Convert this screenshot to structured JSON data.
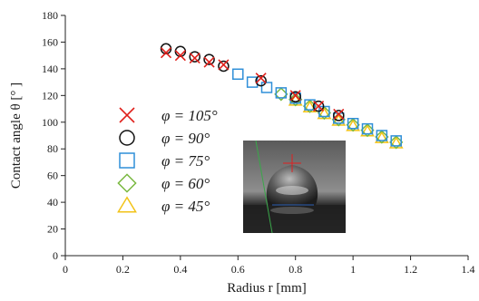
{
  "chart_data": {
    "type": "scatter",
    "xlabel": "Radius r [mm]",
    "ylabel": "Contact angle θ [° ]",
    "xlim": [
      0,
      1.4
    ],
    "ylim": [
      0,
      180
    ],
    "x_ticks": [
      0,
      0.2,
      0.4,
      0.6,
      0.8,
      1,
      1.2,
      1.4
    ],
    "y_ticks": [
      0,
      20,
      40,
      60,
      80,
      100,
      120,
      140,
      160,
      180
    ],
    "x_tick_labels": [
      "0",
      "0.2",
      "0.4",
      "0.6",
      "0.8",
      "1",
      "1.2",
      "1.4"
    ],
    "y_tick_labels": [
      "0",
      "20",
      "40",
      "60",
      "80",
      "100",
      "120",
      "140",
      "160",
      "180"
    ],
    "grid": false,
    "legend_position": "left",
    "inset": "droplet photograph",
    "series": [
      {
        "name": "φ = 105°",
        "marker": "x",
        "color": "#e0201b",
        "points": [
          {
            "x": 0.35,
            "y": 152
          },
          {
            "x": 0.4,
            "y": 150
          },
          {
            "x": 0.45,
            "y": 148
          },
          {
            "x": 0.5,
            "y": 145
          },
          {
            "x": 0.55,
            "y": 143
          },
          {
            "x": 0.68,
            "y": 133
          },
          {
            "x": 0.8,
            "y": 120
          },
          {
            "x": 0.88,
            "y": 112
          },
          {
            "x": 0.95,
            "y": 106
          }
        ]
      },
      {
        "name": "φ = 90°",
        "marker": "circle",
        "color": "#111111",
        "points": [
          {
            "x": 0.35,
            "y": 155
          },
          {
            "x": 0.4,
            "y": 153
          },
          {
            "x": 0.45,
            "y": 149
          },
          {
            "x": 0.5,
            "y": 147
          },
          {
            "x": 0.55,
            "y": 142
          },
          {
            "x": 0.68,
            "y": 131
          },
          {
            "x": 0.8,
            "y": 119
          },
          {
            "x": 0.88,
            "y": 112
          },
          {
            "x": 0.95,
            "y": 105
          }
        ]
      },
      {
        "name": "φ = 75°",
        "marker": "square",
        "color": "#2f8fd8",
        "points": [
          {
            "x": 0.6,
            "y": 136
          },
          {
            "x": 0.65,
            "y": 130
          },
          {
            "x": 0.7,
            "y": 126
          },
          {
            "x": 0.75,
            "y": 122
          },
          {
            "x": 0.8,
            "y": 118
          },
          {
            "x": 0.85,
            "y": 113
          },
          {
            "x": 0.9,
            "y": 108
          },
          {
            "x": 0.95,
            "y": 103
          },
          {
            "x": 1.0,
            "y": 99
          },
          {
            "x": 1.05,
            "y": 95
          },
          {
            "x": 1.1,
            "y": 90
          },
          {
            "x": 1.15,
            "y": 86
          }
        ]
      },
      {
        "name": "φ = 60°",
        "marker": "diamond",
        "color": "#79b83f",
        "points": [
          {
            "x": 0.75,
            "y": 121
          },
          {
            "x": 0.8,
            "y": 117
          },
          {
            "x": 0.85,
            "y": 112
          },
          {
            "x": 0.9,
            "y": 107
          },
          {
            "x": 0.95,
            "y": 102
          },
          {
            "x": 1.0,
            "y": 98
          },
          {
            "x": 1.05,
            "y": 94
          },
          {
            "x": 1.1,
            "y": 89
          },
          {
            "x": 1.15,
            "y": 85
          }
        ]
      },
      {
        "name": "φ = 45°",
        "marker": "triangle",
        "color": "#f2c318",
        "points": [
          {
            "x": 0.8,
            "y": 116
          },
          {
            "x": 0.85,
            "y": 111
          },
          {
            "x": 0.9,
            "y": 106
          },
          {
            "x": 0.95,
            "y": 101
          },
          {
            "x": 1.0,
            "y": 97
          },
          {
            "x": 1.05,
            "y": 93
          },
          {
            "x": 1.1,
            "y": 88
          },
          {
            "x": 1.15,
            "y": 84
          }
        ]
      }
    ]
  }
}
